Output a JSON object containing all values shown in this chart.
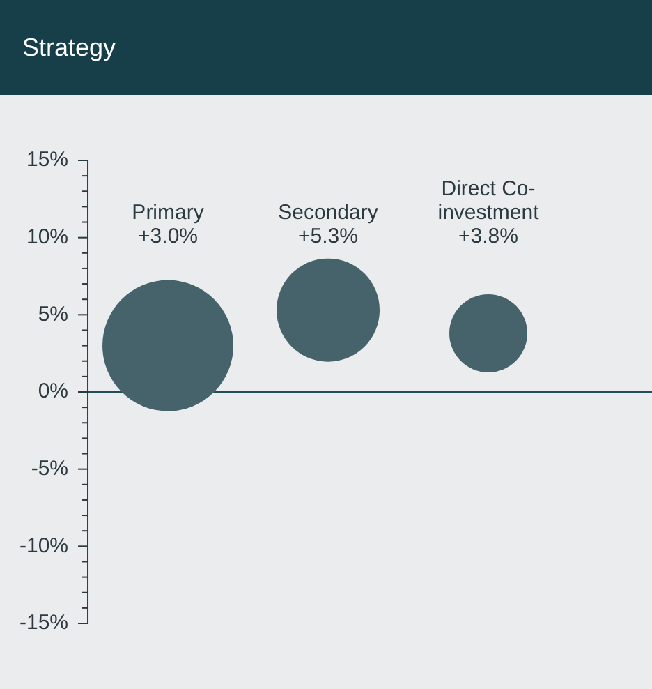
{
  "chart_data": {
    "type": "bubble",
    "title": "Strategy",
    "categories": [
      "Primary",
      "Secondary",
      "Direct Co-investment"
    ],
    "values": [
      3.0,
      5.3,
      3.8
    ],
    "sizes": [
      1,
      0.62,
      0.355
    ],
    "value_labels": [
      "+3.0%",
      "+5.3%",
      "+3.8%"
    ],
    "color": "#46636b",
    "ylim": [
      -15,
      15
    ],
    "yticks": [
      {
        "value": -15,
        "label": "-15%"
      },
      {
        "value": -14,
        "label": null
      },
      {
        "value": -13,
        "label": null
      },
      {
        "value": -12,
        "label": null
      },
      {
        "value": -11,
        "label": null
      },
      {
        "value": -10,
        "label": "-10%"
      },
      {
        "value": -9,
        "label": null
      },
      {
        "value": -8,
        "label": null
      },
      {
        "value": -7,
        "label": null
      },
      {
        "value": -6,
        "label": null
      },
      {
        "value": -5,
        "label": "-5%"
      },
      {
        "value": -4,
        "label": null
      },
      {
        "value": -3,
        "label": null
      },
      {
        "value": -2,
        "label": null
      },
      {
        "value": -1,
        "label": null
      },
      {
        "value": 0,
        "label": "0%"
      },
      {
        "value": 1,
        "label": null
      },
      {
        "value": 2,
        "label": null
      },
      {
        "value": 3,
        "label": null
      },
      {
        "value": 4,
        "label": null
      },
      {
        "value": 5,
        "label": "5%"
      },
      {
        "value": 6,
        "label": null
      },
      {
        "value": 7,
        "label": null
      },
      {
        "value": 8,
        "label": null
      },
      {
        "value": 9,
        "label": null
      },
      {
        "value": 10,
        "label": "10%"
      },
      {
        "value": 11,
        "label": null
      },
      {
        "value": 12,
        "label": null
      },
      {
        "value": 13,
        "label": null
      },
      {
        "value": 14,
        "label": null
      },
      {
        "value": 15,
        "label": "15%"
      }
    ],
    "ref_lines": [
      {
        "axis": "y",
        "value": 0,
        "color": "#1f4d59"
      }
    ],
    "tick_labels": "y",
    "grid": false,
    "legend": false
  }
}
